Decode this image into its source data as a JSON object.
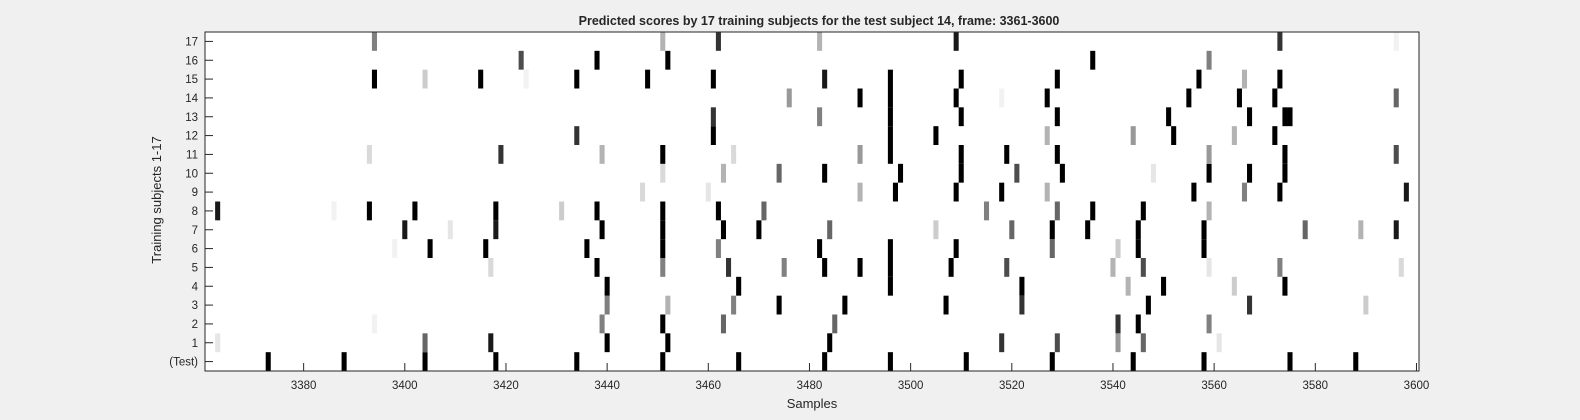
{
  "chart_data": {
    "type": "heatmap",
    "title": "Predicted scores by 17 training subjects for the test subject 14, frame: 3361-3600",
    "xlabel": "Samples",
    "ylabel": "Training subjects 1-17",
    "xlim": [
      3361,
      3600
    ],
    "x_ticks": [
      3380,
      3400,
      3420,
      3440,
      3460,
      3480,
      3500,
      3520,
      3540,
      3560,
      3580,
      3600
    ],
    "rows": [
      "(Test)",
      "1",
      "2",
      "3",
      "4",
      "5",
      "6",
      "7",
      "8",
      "9",
      "10",
      "11",
      "12",
      "13",
      "14",
      "15",
      "16",
      "17"
    ],
    "colormap": "gray-inverted",
    "value_range": [
      0,
      1
    ],
    "cells": [
      {
        "row": "(Test)",
        "marks": [
          [
            3373,
            1
          ],
          [
            3388,
            1
          ],
          [
            3404,
            1
          ],
          [
            3418,
            1
          ],
          [
            3434,
            1
          ],
          [
            3451,
            1
          ],
          [
            3466,
            1
          ],
          [
            3483,
            1
          ],
          [
            3496,
            1
          ],
          [
            3511,
            1
          ],
          [
            3528,
            1
          ],
          [
            3544,
            1
          ],
          [
            3558,
            1
          ],
          [
            3575,
            1
          ],
          [
            3588,
            1
          ]
        ]
      },
      {
        "row": "1",
        "marks": [
          [
            3363,
            0.1
          ],
          [
            3404,
            0.6
          ],
          [
            3417,
            0.9
          ],
          [
            3440,
            1
          ],
          [
            3452,
            1
          ],
          [
            3484,
            1
          ],
          [
            3518,
            0.8
          ],
          [
            3529,
            0.7
          ],
          [
            3541,
            0.4
          ],
          [
            3546,
            0.6
          ],
          [
            3561,
            0.1
          ]
        ]
      },
      {
        "row": "2",
        "marks": [
          [
            3394,
            0.05
          ],
          [
            3439,
            0.5
          ],
          [
            3451,
            1
          ],
          [
            3463,
            0.6
          ],
          [
            3485,
            0.6
          ],
          [
            3541,
            0.8
          ],
          [
            3545,
            1
          ],
          [
            3559,
            0.5
          ]
        ]
      },
      {
        "row": "3",
        "marks": [
          [
            3440,
            0.5
          ],
          [
            3452,
            0.3
          ],
          [
            3465,
            0.5
          ],
          [
            3474,
            1
          ],
          [
            3487,
            1
          ],
          [
            3507,
            1
          ],
          [
            3522,
            0.8
          ],
          [
            3547,
            1
          ],
          [
            3567,
            0.8
          ],
          [
            3590,
            0.2
          ]
        ]
      },
      {
        "row": "4",
        "marks": [
          [
            3440,
            1
          ],
          [
            3466,
            1
          ],
          [
            3496,
            1
          ],
          [
            3522,
            1
          ],
          [
            3543,
            0.3
          ],
          [
            3550,
            1
          ],
          [
            3564,
            0.2
          ],
          [
            3574,
            1
          ]
        ]
      },
      {
        "row": "5",
        "marks": [
          [
            3417,
            0.15
          ],
          [
            3438,
            1
          ],
          [
            3451,
            0.5
          ],
          [
            3464,
            0.8
          ],
          [
            3475,
            0.5
          ],
          [
            3483,
            1
          ],
          [
            3490,
            1
          ],
          [
            3496,
            1
          ],
          [
            3508,
            1
          ],
          [
            3519,
            0.7
          ],
          [
            3540,
            0.3
          ],
          [
            3546,
            0.7
          ],
          [
            3559,
            0.1
          ],
          [
            3573,
            0.5
          ],
          [
            3597,
            0.15
          ]
        ]
      },
      {
        "row": "6",
        "marks": [
          [
            3398,
            0.05
          ],
          [
            3405,
            1
          ],
          [
            3416,
            1
          ],
          [
            3436,
            1
          ],
          [
            3451,
            1
          ],
          [
            3462,
            0.5
          ],
          [
            3482,
            1
          ],
          [
            3496,
            1
          ],
          [
            3509,
            1
          ],
          [
            3528,
            0.6
          ],
          [
            3541,
            0.2
          ],
          [
            3545,
            1
          ],
          [
            3558,
            1
          ]
        ]
      },
      {
        "row": "7",
        "marks": [
          [
            3400,
            0.9
          ],
          [
            3409,
            0.1
          ],
          [
            3418,
            0.9
          ],
          [
            3439,
            1
          ],
          [
            3451,
            1
          ],
          [
            3463,
            1
          ],
          [
            3470,
            1
          ],
          [
            3484,
            0.6
          ],
          [
            3505,
            0.2
          ],
          [
            3520,
            0.6
          ],
          [
            3528,
            1
          ],
          [
            3535,
            1
          ],
          [
            3545,
            1
          ],
          [
            3558,
            1
          ],
          [
            3578,
            0.6
          ],
          [
            3589,
            0.3
          ],
          [
            3596,
            0.9
          ]
        ]
      },
      {
        "row": "8",
        "marks": [
          [
            3363,
            0.9
          ],
          [
            3386,
            0.05
          ],
          [
            3393,
            1
          ],
          [
            3402,
            1
          ],
          [
            3418,
            1
          ],
          [
            3431,
            0.2
          ],
          [
            3438,
            1
          ],
          [
            3451,
            1
          ],
          [
            3462,
            1
          ],
          [
            3471,
            0.6
          ],
          [
            3515,
            0.5
          ],
          [
            3529,
            0.6
          ],
          [
            3536,
            1
          ],
          [
            3546,
            1
          ],
          [
            3559,
            0.3
          ]
        ]
      },
      {
        "row": "9",
        "marks": [
          [
            3447,
            0.15
          ],
          [
            3460,
            0.1
          ],
          [
            3490,
            0.3
          ],
          [
            3497,
            1
          ],
          [
            3509,
            1
          ],
          [
            3518,
            1
          ],
          [
            3527,
            0.3
          ],
          [
            3556,
            1
          ],
          [
            3566,
            0.5
          ],
          [
            3573,
            1
          ],
          [
            3598,
            0.9
          ]
        ]
      },
      {
        "row": "10",
        "marks": [
          [
            3451,
            0.15
          ],
          [
            3463,
            0.3
          ],
          [
            3474,
            0.6
          ],
          [
            3483,
            1
          ],
          [
            3498,
            1
          ],
          [
            3510,
            1
          ],
          [
            3521,
            0.7
          ],
          [
            3530,
            1
          ],
          [
            3548,
            0.1
          ],
          [
            3559,
            1
          ],
          [
            3567,
            1
          ],
          [
            3574,
            1
          ]
        ]
      },
      {
        "row": "11",
        "marks": [
          [
            3393,
            0.15
          ],
          [
            3419,
            0.8
          ],
          [
            3439,
            0.3
          ],
          [
            3451,
            1
          ],
          [
            3465,
            0.15
          ],
          [
            3490,
            0.4
          ],
          [
            3496,
            1
          ],
          [
            3510,
            1
          ],
          [
            3519,
            1
          ],
          [
            3529,
            1
          ],
          [
            3559,
            0.4
          ],
          [
            3574,
            1
          ],
          [
            3596,
            0.7
          ]
        ]
      },
      {
        "row": "12",
        "marks": [
          [
            3434,
            0.8
          ],
          [
            3461,
            1
          ],
          [
            3496,
            1
          ],
          [
            3505,
            1
          ],
          [
            3527,
            0.3
          ],
          [
            3544,
            0.4
          ],
          [
            3552,
            1
          ],
          [
            3564,
            0.3
          ],
          [
            3572,
            1
          ]
        ]
      },
      {
        "row": "13",
        "marks": [
          [
            3461,
            0.8
          ],
          [
            3482,
            0.5
          ],
          [
            3496,
            1
          ],
          [
            3510,
            1
          ],
          [
            3529,
            1
          ],
          [
            3551,
            1
          ],
          [
            3567,
            1
          ],
          [
            3574,
            1
          ],
          [
            3575,
            1
          ]
        ]
      },
      {
        "row": "14",
        "marks": [
          [
            3476,
            0.4
          ],
          [
            3490,
            1
          ],
          [
            3496,
            1
          ],
          [
            3509,
            1
          ],
          [
            3518,
            0.05
          ],
          [
            3527,
            1
          ],
          [
            3555,
            1
          ],
          [
            3565,
            1
          ],
          [
            3572,
            1
          ],
          [
            3596,
            0.6
          ]
        ]
      },
      {
        "row": "15",
        "marks": [
          [
            3394,
            1
          ],
          [
            3404,
            0.2
          ],
          [
            3415,
            1
          ],
          [
            3424,
            0.05
          ],
          [
            3434,
            1
          ],
          [
            3448,
            1
          ],
          [
            3461,
            1
          ],
          [
            3483,
            0.9
          ],
          [
            3496,
            1
          ],
          [
            3510,
            1
          ],
          [
            3529,
            1
          ],
          [
            3557,
            1
          ],
          [
            3566,
            0.3
          ],
          [
            3573,
            1
          ]
        ]
      },
      {
        "row": "16",
        "marks": [
          [
            3423,
            0.7
          ],
          [
            3438,
            1
          ],
          [
            3452,
            1
          ],
          [
            3536,
            1
          ],
          [
            3559,
            0.5
          ]
        ]
      },
      {
        "row": "17",
        "marks": [
          [
            3394,
            0.5
          ],
          [
            3451,
            0.3
          ],
          [
            3462,
            0.8
          ],
          [
            3482,
            0.3
          ],
          [
            3509,
            0.9
          ],
          [
            3573,
            0.8
          ],
          [
            3596,
            0.05
          ]
        ]
      }
    ]
  }
}
